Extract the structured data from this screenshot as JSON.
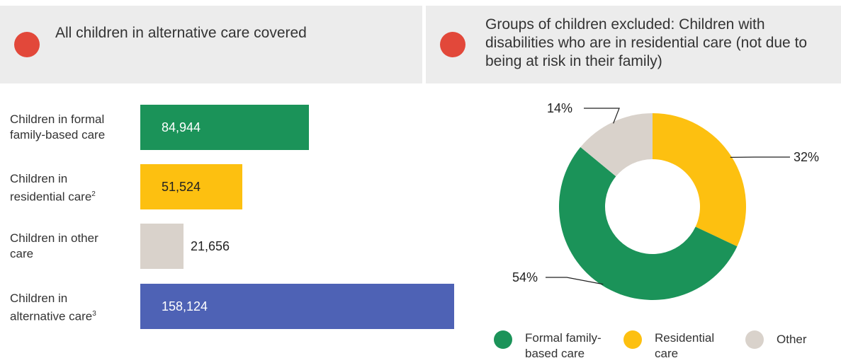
{
  "header": {
    "left_text": "All children in alternative care covered",
    "right_text": "Groups of children excluded: Children with disabilities who are in residential care (not due to being at risk in their family)",
    "indicator_color": "#e2483a"
  },
  "chart_data": [
    {
      "type": "bar",
      "orientation": "horizontal",
      "categories": [
        "Children in formal family-based care",
        "Children in residential care",
        "Children in other care",
        "Children in alternative care"
      ],
      "label_lines": [
        [
          "Children in formal",
          "family-based care"
        ],
        [
          "Children in",
          "residential care"
        ],
        [
          "Children in other",
          "care"
        ],
        [
          "Children in",
          "alternative care"
        ]
      ],
      "footnotes": [
        "",
        "2",
        "",
        "3"
      ],
      "values": [
        84944,
        51524,
        21656,
        158124
      ],
      "value_labels": [
        "84,944",
        "51,524",
        "21,656",
        "158,124"
      ],
      "colors": [
        "#1b9359",
        "#fdc010",
        "#d9d2cb",
        "#4e62b5"
      ],
      "value_label_colors": [
        "#ffffff",
        "#222222",
        "#222222",
        "#ffffff"
      ],
      "xlim": [
        0,
        158124
      ]
    },
    {
      "type": "pie",
      "style": "donut",
      "labels": [
        "Residential care",
        "Formal family-based care",
        "Other"
      ],
      "values": [
        32,
        54,
        14
      ],
      "value_labels": [
        "32%",
        "54%",
        "14%"
      ],
      "colors": [
        "#fdc010",
        "#1b9359",
        "#d9d2cb"
      ],
      "legend": [
        {
          "lines": [
            "Formal family-",
            "based care"
          ],
          "color": "#1b9359"
        },
        {
          "lines": [
            "Residential",
            "care"
          ],
          "color": "#fdc010"
        },
        {
          "lines": [
            "Other"
          ],
          "color": "#d9d2cb"
        }
      ],
      "legend_position": "bottom"
    }
  ]
}
